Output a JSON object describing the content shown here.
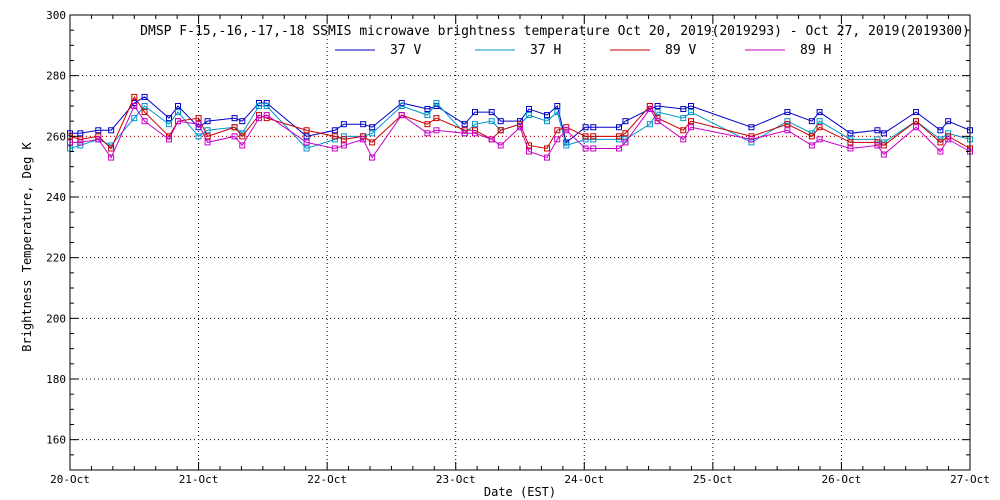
{
  "chart_data": {
    "type": "line",
    "title": "DMSP F-15,-16,-17,-18 SSMIS microwave brightness temperature Oct 20, 2019(2019293) - Oct 27, 2019(2019300)",
    "xlabel": "Date (EST)",
    "ylabel": "Brightness Temperature, Deg K",
    "xlim": [
      0,
      7
    ],
    "ylim": [
      150,
      300
    ],
    "x_tick_labels": [
      "20-Oct",
      "21-Oct",
      "22-Oct",
      "23-Oct",
      "24-Oct",
      "25-Oct",
      "26-Oct",
      "27-Oct"
    ],
    "y_ticks": [
      160,
      180,
      200,
      220,
      240,
      260,
      280,
      300
    ],
    "reference_line": 260,
    "grid": true,
    "legend_position": "top",
    "series": [
      {
        "name": "37 V",
        "color": "#0000c8",
        "x": [
          0.0,
          0.08,
          0.22,
          0.32,
          0.5,
          0.58,
          0.77,
          0.84,
          1.0,
          1.07,
          1.28,
          1.34,
          1.47,
          1.53,
          1.84,
          2.06,
          2.13,
          2.28,
          2.35,
          2.58,
          2.78,
          2.85,
          3.07,
          3.15,
          3.28,
          3.35,
          3.5,
          3.57,
          3.71,
          3.79,
          3.86,
          4.01,
          4.07,
          4.27,
          4.32,
          4.51,
          4.57,
          4.77,
          4.83,
          5.3,
          5.58,
          5.77,
          5.83,
          6.07,
          6.28,
          6.33,
          6.58,
          6.77,
          6.83,
          7.0
        ],
        "values": [
          261,
          261,
          262,
          262,
          271,
          273,
          266,
          270,
          263,
          265,
          266,
          265,
          271,
          271,
          260,
          262,
          264,
          264,
          263,
          271,
          269,
          270,
          264,
          268,
          268,
          265,
          265,
          269,
          267,
          270,
          258,
          263,
          263,
          263,
          265,
          269,
          270,
          269,
          270,
          263,
          268,
          265,
          268,
          261,
          262,
          261,
          268,
          262,
          265,
          262
        ]
      },
      {
        "name": "37 H",
        "color": "#0096c8",
        "x": [
          0.0,
          0.08,
          0.22,
          0.32,
          0.5,
          0.58,
          0.77,
          0.84,
          1.0,
          1.07,
          1.28,
          1.34,
          1.47,
          1.53,
          1.84,
          2.06,
          2.13,
          2.28,
          2.35,
          2.58,
          2.78,
          2.85,
          3.07,
          3.15,
          3.28,
          3.35,
          3.5,
          3.57,
          3.71,
          3.79,
          3.86,
          4.01,
          4.07,
          4.27,
          4.32,
          4.51,
          4.57,
          4.77,
          4.83,
          5.3,
          5.58,
          5.77,
          5.83,
          6.07,
          6.28,
          6.33,
          6.58,
          6.77,
          6.83,
          7.0
        ],
        "values": [
          256,
          257,
          259,
          257,
          266,
          270,
          264,
          268,
          260,
          262,
          263,
          261,
          270,
          270,
          256,
          259,
          260,
          260,
          261,
          270,
          267,
          271,
          261,
          264,
          265,
          262,
          264,
          267,
          265,
          268,
          257,
          259,
          259,
          259,
          259,
          264,
          268,
          266,
          268,
          258,
          265,
          261,
          265,
          259,
          259,
          258,
          265,
          259,
          261,
          259
        ]
      },
      {
        "name": "89 V",
        "color": "#c80000",
        "x": [
          0.0,
          0.08,
          0.22,
          0.32,
          0.5,
          0.58,
          0.77,
          0.84,
          1.0,
          1.07,
          1.28,
          1.34,
          1.47,
          1.53,
          1.84,
          2.06,
          2.13,
          2.28,
          2.35,
          2.58,
          2.78,
          2.85,
          3.07,
          3.15,
          3.28,
          3.35,
          3.5,
          3.57,
          3.71,
          3.79,
          3.86,
          4.01,
          4.07,
          4.27,
          4.32,
          4.51,
          4.57,
          4.77,
          4.83,
          5.3,
          5.58,
          5.77,
          5.83,
          6.07,
          6.28,
          6.33,
          6.58,
          6.77,
          6.83,
          7.0
        ],
        "values": [
          260,
          259,
          260,
          256,
          273,
          268,
          260,
          265,
          266,
          260,
          263,
          260,
          267,
          266,
          262,
          260,
          259,
          260,
          258,
          267,
          264,
          266,
          262,
          262,
          259,
          262,
          264,
          257,
          256,
          262,
          263,
          260,
          260,
          260,
          261,
          270,
          266,
          262,
          265,
          260,
          264,
          260,
          263,
          258,
          258,
          257,
          265,
          258,
          260,
          256
        ]
      },
      {
        "name": "89 H",
        "color": "#c800c8",
        "x": [
          0.0,
          0.08,
          0.22,
          0.32,
          0.5,
          0.58,
          0.77,
          0.84,
          1.0,
          1.07,
          1.28,
          1.34,
          1.47,
          1.53,
          1.84,
          2.06,
          2.13,
          2.28,
          2.35,
          2.58,
          2.78,
          2.85,
          3.07,
          3.15,
          3.28,
          3.35,
          3.5,
          3.57,
          3.71,
          3.79,
          3.86,
          4.01,
          4.07,
          4.27,
          4.32,
          4.51,
          4.57,
          4.77,
          4.83,
          5.3,
          5.58,
          5.77,
          5.83,
          6.07,
          6.28,
          6.33,
          6.58,
          6.77,
          6.83,
          7.0
        ],
        "values": [
          258,
          258,
          259,
          253,
          270,
          265,
          259,
          265,
          264,
          258,
          260,
          257,
          266,
          267,
          258,
          256,
          257,
          259,
          253,
          267,
          261,
          262,
          261,
          261,
          259,
          257,
          263,
          255,
          253,
          259,
          262,
          256,
          256,
          256,
          258,
          269,
          265,
          259,
          263,
          259,
          262,
          257,
          259,
          256,
          257,
          254,
          263,
          255,
          259,
          255
        ]
      }
    ]
  }
}
